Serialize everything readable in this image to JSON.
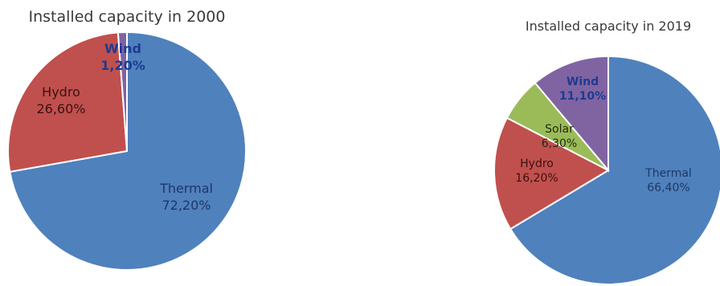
{
  "chart_data": [
    {
      "type": "pie",
      "title": "Installed capacity in 2000",
      "start_angle_deg": 0,
      "direction": "clockwise",
      "slices": [
        {
          "name": "Thermal",
          "value": 72.2,
          "label_value": "72,20%",
          "color": "#4f81bd",
          "label_color": "#1f3864",
          "bold": false
        },
        {
          "name": "Hydro",
          "value": 26.6,
          "label_value": "26,60%",
          "color": "#c0504d",
          "label_color": "#3b1111",
          "bold": false
        },
        {
          "name": "Wind",
          "value": 1.2,
          "label_value": "1,20%",
          "color": "#8064a2",
          "label_color": "#1f3a93",
          "bold": true
        }
      ]
    },
    {
      "type": "pie",
      "title": "Installed capacity in 2019",
      "start_angle_deg": 0,
      "direction": "clockwise",
      "slices": [
        {
          "name": "Thermal",
          "value": 66.4,
          "label_value": "66,40%",
          "color": "#4f81bd",
          "label_color": "#1f3864",
          "bold": false
        },
        {
          "name": "Hydro",
          "value": 16.2,
          "label_value": "16,20%",
          "color": "#c0504d",
          "label_color": "#3b1111",
          "bold": false
        },
        {
          "name": "Solar",
          "value": 6.3,
          "label_value": "6,30%",
          "color": "#9bbb59",
          "label_color": "#1e2a10",
          "bold": false
        },
        {
          "name": "Wind",
          "value": 11.1,
          "label_value": "11,10%",
          "color": "#8064a2",
          "label_color": "#1f3a93",
          "bold": true
        }
      ]
    }
  ]
}
